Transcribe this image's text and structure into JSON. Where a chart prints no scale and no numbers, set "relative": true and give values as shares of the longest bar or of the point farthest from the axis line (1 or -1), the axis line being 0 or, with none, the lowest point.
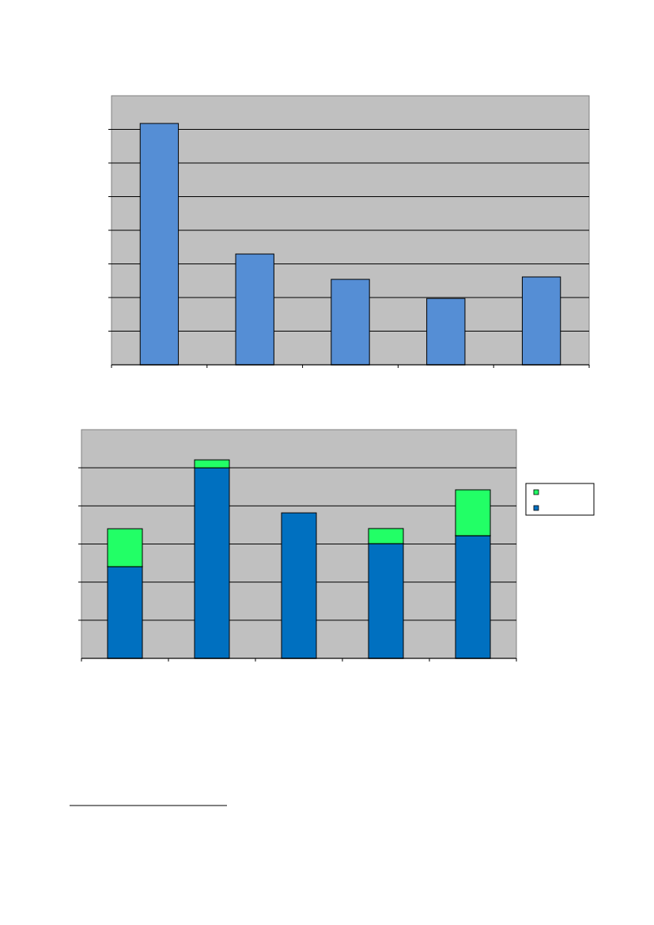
{
  "chart_data": [
    {
      "type": "bar",
      "relative": true,
      "categories": [
        null,
        null,
        null,
        null,
        null
      ],
      "values": [
        1,
        0.459,
        0.354,
        0.275,
        0.364
      ],
      "color": "#558ed5",
      "grid": "y"
    },
    {
      "type": "bar",
      "relative": true,
      "stacked": true,
      "categories": [
        null,
        null,
        null,
        null,
        null
      ],
      "series": [
        {
          "color": "#0070c0",
          "values": [
            0.462,
            0.96,
            0.733,
            0.578,
            0.618
          ]
        },
        {
          "color": "#22ff66",
          "values": [
            0.191,
            0.04,
            0,
            0.076,
            0.231
          ]
        }
      ],
      "grid": "y"
    }
  ]
}
